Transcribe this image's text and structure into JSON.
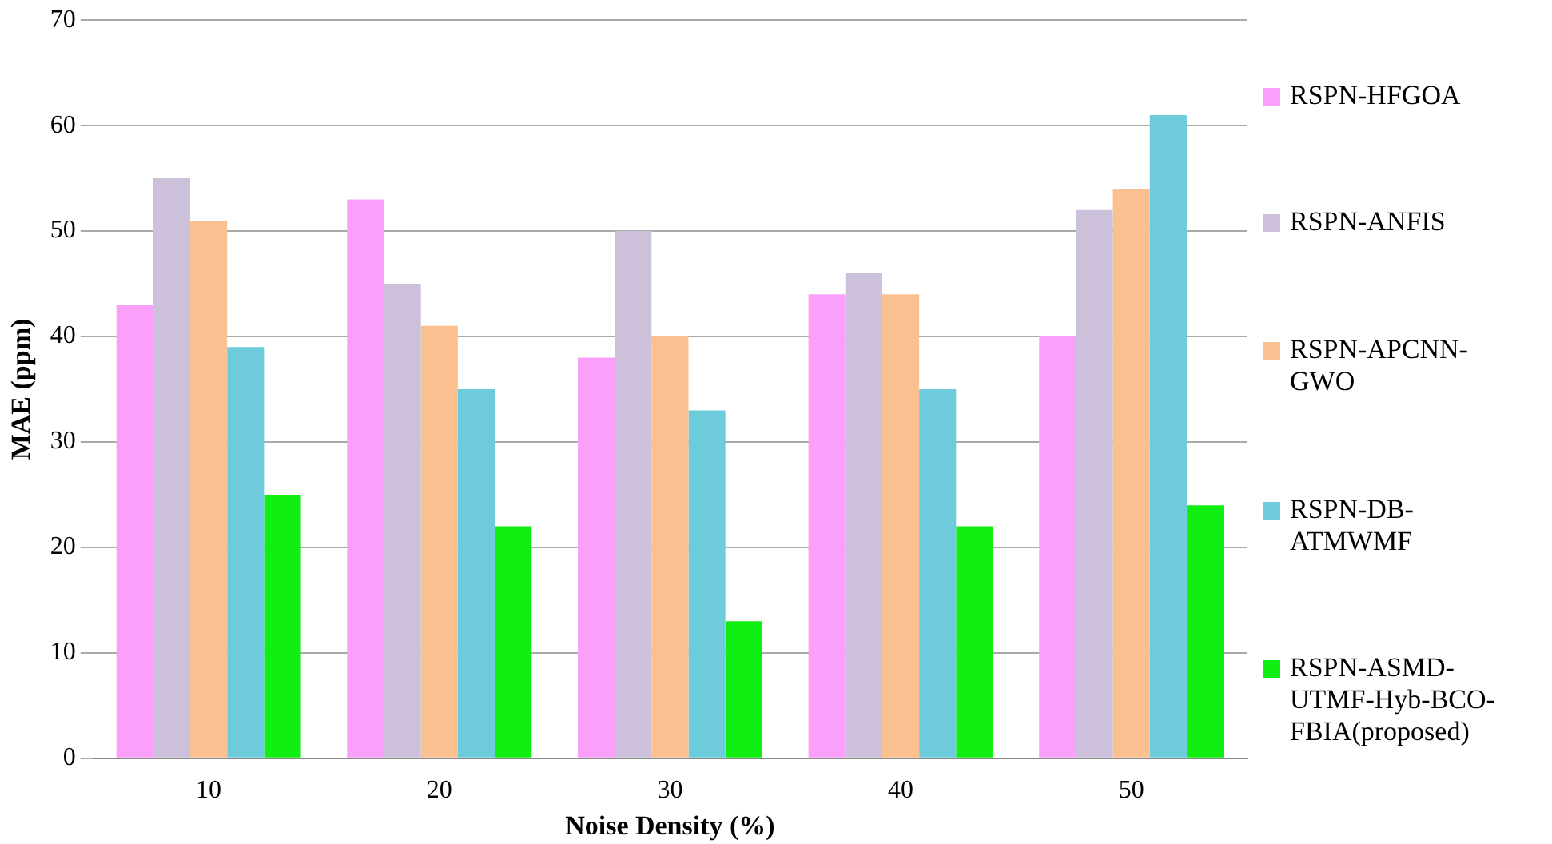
{
  "chart_data": {
    "type": "bar",
    "xlabel": "Noise Density (%)",
    "ylabel": "MAE (ppm)",
    "categories": [
      "10",
      "20",
      "30",
      "40",
      "50"
    ],
    "series": [
      {
        "name": "RSPN-HFGOA",
        "color": "#fa9ffa",
        "values": [
          43,
          53,
          38,
          44,
          40
        ]
      },
      {
        "name": "RSPN-ANFIS",
        "color": "#ccc0da",
        "values": [
          55,
          45,
          50,
          46,
          52
        ]
      },
      {
        "name": "RSPN-APCNN-GWO",
        "color": "#fac090",
        "values": [
          51,
          41,
          40,
          44,
          54
        ]
      },
      {
        "name": "RSPN-DB-ATMWMF",
        "color": "#6ecbdc",
        "values": [
          39,
          35,
          33,
          35,
          61
        ]
      },
      {
        "name": "RSPN-ASMD-UTMF-Hyb-BCO-FBIA(proposed)",
        "color": "#11ee11",
        "values": [
          25,
          22,
          13,
          22,
          24
        ]
      }
    ],
    "ylim": [
      0,
      70
    ],
    "yticks": [
      0,
      10,
      20,
      30,
      40,
      50,
      60,
      70
    ],
    "grid": "y",
    "legend": "right"
  }
}
